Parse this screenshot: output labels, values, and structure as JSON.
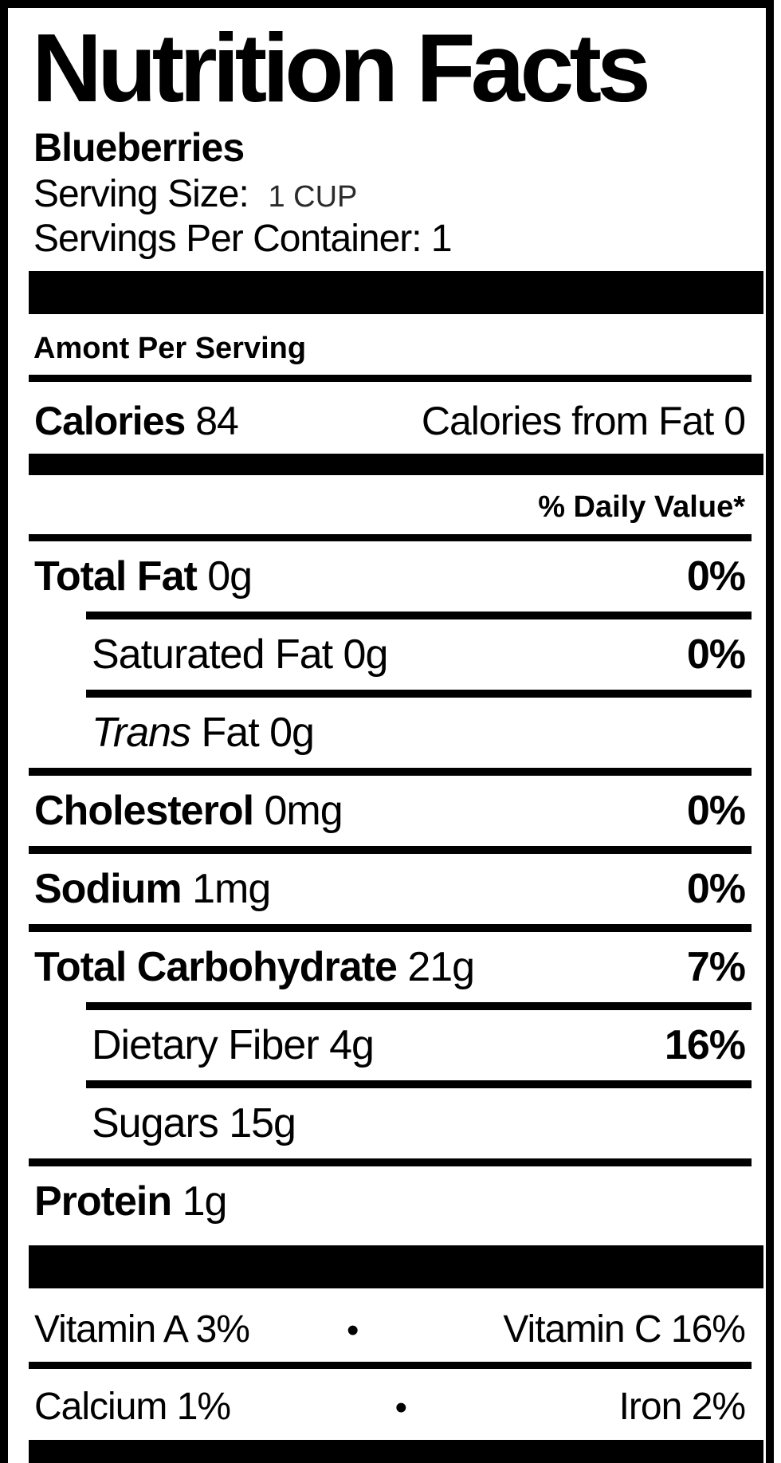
{
  "colors": {
    "ink": "#000000",
    "paper": "#ffffff",
    "serving_value_ink": "#2b2b2b"
  },
  "label": {
    "title": "Nutrition Facts",
    "product_name": "Blueberries",
    "serving_size": {
      "label": "Serving Size:",
      "value": "1 CUP"
    },
    "servings_per_container": "Servings Per Container: 1",
    "amount_per_serving": "Amont Per Serving",
    "calories": {
      "label": "Calories",
      "value": "84",
      "from_fat": "Calories from Fat 0"
    },
    "daily_value_header": "% Daily Value*",
    "nutrients": [
      {
        "name": "Total Fat",
        "amount": "0g",
        "daily_value": "0%"
      },
      {
        "name": "Saturated Fat",
        "amount": "0g",
        "daily_value": "0%"
      },
      {
        "name": "Trans",
        "amount": "Fat 0g",
        "daily_value": ""
      },
      {
        "name": "Cholesterol",
        "amount": "0mg",
        "daily_value": "0%"
      },
      {
        "name": "Sodium",
        "amount": "1mg",
        "daily_value": "0%"
      },
      {
        "name": "Total Carbohydrate",
        "amount": "21g",
        "daily_value": "7%"
      },
      {
        "name": "Dietary Fiber",
        "amount": "4g",
        "daily_value": "16%"
      },
      {
        "name": "Sugars",
        "amount": "15g",
        "daily_value": ""
      },
      {
        "name": "Protein",
        "amount": "1g",
        "daily_value": ""
      }
    ],
    "micronutrients": {
      "bullet": "•",
      "rows": [
        {
          "left": "Vitamin A 3%",
          "right": "Vitamin C 16%"
        },
        {
          "left": "Calcium 1%",
          "right": "Iron 2%"
        }
      ]
    }
  }
}
